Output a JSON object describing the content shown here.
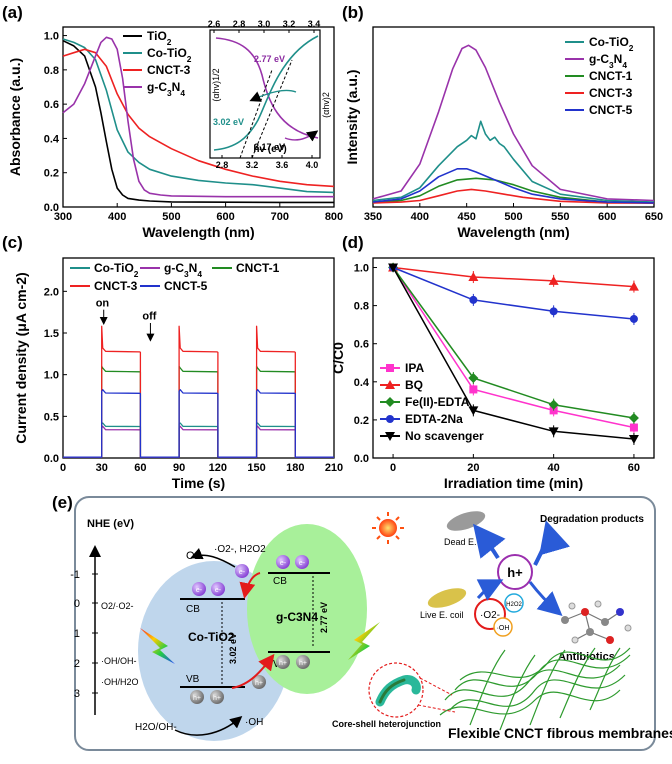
{
  "chart_data": [
    {
      "panel": "(a)",
      "type": "line",
      "xlabel": "Wavelength (nm)",
      "ylabel": "Absorbance (a.u.)",
      "xlim": [
        300,
        800
      ],
      "ylim": [
        0,
        1.05
      ],
      "xticks": [
        300,
        400,
        500,
        600,
        700,
        800
      ],
      "yticks": [
        0.0,
        0.2,
        0.4,
        0.6,
        0.8,
        1.0
      ],
      "legend": "top-left",
      "series": [
        {
          "name": "TiO2",
          "label_base": "TiO",
          "label_sub": "2",
          "color": "#000000",
          "x": [
            300,
            320,
            340,
            360,
            370,
            380,
            390,
            400,
            410,
            420,
            440,
            460,
            500,
            600,
            700,
            800
          ],
          "y": [
            0.97,
            0.94,
            0.88,
            0.7,
            0.55,
            0.38,
            0.22,
            0.11,
            0.07,
            0.05,
            0.04,
            0.035,
            0.03,
            0.028,
            0.027,
            0.027
          ]
        },
        {
          "name": "Co-TiO2",
          "label_base": "Co-TiO",
          "label_sub": "2",
          "color": "#1f8f8a",
          "x": [
            300,
            320,
            340,
            360,
            380,
            400,
            420,
            440,
            460,
            500,
            550,
            600,
            650,
            700,
            750,
            800
          ],
          "y": [
            0.98,
            0.96,
            0.93,
            0.86,
            0.68,
            0.45,
            0.32,
            0.26,
            0.22,
            0.18,
            0.155,
            0.14,
            0.13,
            0.11,
            0.09,
            0.085
          ]
        },
        {
          "name": "CNCT-3",
          "label_base": "CNCT-3",
          "label_sub": "",
          "color": "#ee2222",
          "x": [
            300,
            320,
            340,
            360,
            380,
            400,
            420,
            440,
            460,
            500,
            550,
            600,
            650,
            700,
            750,
            800
          ],
          "y": [
            0.88,
            0.9,
            0.92,
            0.9,
            0.82,
            0.66,
            0.54,
            0.46,
            0.41,
            0.34,
            0.27,
            0.22,
            0.18,
            0.15,
            0.13,
            0.12
          ]
        },
        {
          "name": "g-C3N4",
          "label_base": "g-C",
          "label_sub": "3",
          "label_mid": "N",
          "label_sub2": "4",
          "color": "#9933aa",
          "x": [
            300,
            320,
            340,
            360,
            370,
            380,
            390,
            400,
            410,
            420,
            430,
            440,
            450,
            460,
            480,
            500,
            600,
            700,
            800
          ],
          "y": [
            0.55,
            0.6,
            0.72,
            0.88,
            0.96,
            0.99,
            0.98,
            0.92,
            0.75,
            0.5,
            0.28,
            0.15,
            0.1,
            0.08,
            0.07,
            0.065,
            0.06,
            0.06,
            0.06
          ]
        }
      ],
      "inset": {
        "xlabel": "hv (eV)",
        "ylabel_left": "(αhv)1/2",
        "ylabel_right": "(αhv)2",
        "xticks_bottom": [
          2.8,
          3.2,
          3.6,
          4.0
        ],
        "xticks_top": [
          2.6,
          2.8,
          3.0,
          3.2,
          3.4
        ],
        "annotations": [
          "2.77 eV",
          "3.02 eV",
          "3.17 eV"
        ]
      }
    },
    {
      "panel": "(b)",
      "type": "line",
      "xlabel": "Wavelength (nm)",
      "ylabel": "Intensity (a.u.)",
      "xlim": [
        350,
        650
      ],
      "xticks": [
        350,
        400,
        450,
        500,
        550,
        600,
        650
      ],
      "legend": "top-right",
      "series": [
        {
          "name": "Co-TiO2",
          "label_base": "Co-TiO",
          "label_sub": "2",
          "color": "#1f8f8a",
          "x": [
            350,
            380,
            400,
            420,
            440,
            450,
            455,
            460,
            465,
            470,
            475,
            480,
            485,
            490,
            500,
            520,
            550,
            600,
            650
          ],
          "y": [
            0.02,
            0.04,
            0.1,
            0.24,
            0.36,
            0.4,
            0.43,
            0.41,
            0.52,
            0.44,
            0.4,
            0.42,
            0.38,
            0.36,
            0.28,
            0.14,
            0.06,
            0.02,
            0.01
          ]
        },
        {
          "name": "g-C3N4",
          "label_base": "g-C",
          "label_sub": "3",
          "label_mid": "N",
          "label_sub2": "4",
          "color": "#9933aa",
          "x": [
            350,
            380,
            400,
            420,
            435,
            445,
            452,
            460,
            470,
            485,
            500,
            520,
            550,
            600,
            650
          ],
          "y": [
            0.03,
            0.08,
            0.25,
            0.58,
            0.85,
            0.98,
            1.0,
            0.97,
            0.86,
            0.64,
            0.44,
            0.24,
            0.09,
            0.03,
            0.02
          ]
        },
        {
          "name": "CNCT-1",
          "label_base": "CNCT-1",
          "label_sub": "",
          "color": "#228b22",
          "x": [
            350,
            380,
            400,
            420,
            440,
            460,
            480,
            500,
            520,
            550,
            600,
            650
          ],
          "y": [
            0.01,
            0.02,
            0.05,
            0.11,
            0.15,
            0.16,
            0.15,
            0.12,
            0.08,
            0.04,
            0.01,
            0.005
          ]
        },
        {
          "name": "CNCT-3",
          "label_base": "CNCT-3",
          "label_sub": "",
          "color": "#ee2222",
          "x": [
            350,
            380,
            400,
            420,
            440,
            455,
            470,
            490,
            510,
            550,
            600,
            650
          ],
          "y": [
            0.005,
            0.01,
            0.02,
            0.05,
            0.08,
            0.09,
            0.08,
            0.06,
            0.04,
            0.015,
            0.005,
            0.003
          ]
        },
        {
          "name": "CNCT-5",
          "label_base": "CNCT-5",
          "label_sub": "",
          "color": "#2233cc",
          "x": [
            350,
            380,
            400,
            420,
            440,
            450,
            460,
            480,
            500,
            520,
            550,
            600,
            650
          ],
          "y": [
            0.01,
            0.03,
            0.08,
            0.17,
            0.22,
            0.22,
            0.2,
            0.15,
            0.1,
            0.06,
            0.03,
            0.01,
            0.005
          ]
        }
      ]
    },
    {
      "panel": "(c)",
      "type": "line",
      "xlabel": "Time (s)",
      "ylabel": "Current density (μA cm-2)",
      "xlim": [
        0,
        210
      ],
      "ylim": [
        0,
        2.4
      ],
      "xticks": [
        0,
        30,
        60,
        90,
        120,
        150,
        180,
        210
      ],
      "yticks": [
        0.0,
        0.5,
        1.0,
        1.5,
        2.0
      ],
      "legend": "top",
      "annotations": [
        "on",
        "off"
      ],
      "on_intervals": [
        [
          30,
          60
        ],
        [
          90,
          120
        ],
        [
          150,
          180
        ]
      ],
      "series": [
        {
          "name": "Co-TiO2",
          "label_base": "Co-TiO",
          "label_sub": "2",
          "color": "#1f8f8a",
          "on_level": 0.38,
          "spike": 0.41
        },
        {
          "name": "g-C3N4",
          "label_base": "g-C",
          "label_sub": "3",
          "label_mid": "N",
          "label_sub2": "4",
          "color": "#9933aa",
          "on_level": 0.34,
          "spike": 0.36
        },
        {
          "name": "CNCT-1",
          "label_base": "CNCT-1",
          "label_sub": "",
          "color": "#228b22",
          "on_level": 1.04,
          "spike": 1.1
        },
        {
          "name": "CNCT-3",
          "label_base": "CNCT-3",
          "label_sub": "",
          "color": "#ee2222",
          "on_level": 1.28,
          "spike": 1.58
        },
        {
          "name": "CNCT-5",
          "label_base": "CNCT-5",
          "label_sub": "",
          "color": "#2233cc",
          "on_level": 0.78,
          "spike": 0.8
        }
      ]
    },
    {
      "panel": "(d)",
      "type": "line",
      "xlabel": "Irradiation time (min)",
      "ylabel": "C/C0",
      "xlim": [
        -5,
        65
      ],
      "ylim": [
        0,
        1.05
      ],
      "xticks": [
        0,
        20,
        40,
        60
      ],
      "yticks": [
        0.0,
        0.2,
        0.4,
        0.6,
        0.8,
        1.0
      ],
      "legend": "bottom-left",
      "x": [
        0,
        20,
        40,
        60
      ],
      "series": [
        {
          "name": "IPA",
          "color": "#ff33cc",
          "marker": "square",
          "values": [
            1.0,
            0.36,
            0.25,
            0.16
          ]
        },
        {
          "name": "BQ",
          "color": "#ee2222",
          "marker": "triangle-up",
          "values": [
            1.0,
            0.95,
            0.93,
            0.9
          ]
        },
        {
          "name": "Fe(II)-EDTA",
          "color": "#228b22",
          "marker": "diamond",
          "values": [
            1.0,
            0.42,
            0.28,
            0.21
          ]
        },
        {
          "name": "EDTA-2Na",
          "color": "#2233cc",
          "marker": "circle",
          "values": [
            1.0,
            0.83,
            0.77,
            0.73
          ]
        },
        {
          "name": "No scavenger",
          "color": "#000000",
          "marker": "triangle-down",
          "values": [
            1.0,
            0.25,
            0.14,
            0.1
          ]
        }
      ]
    }
  ],
  "panels": {
    "a": "(a)",
    "b": "(b)",
    "c": "(c)",
    "d": "(d)",
    "e": "(e)"
  },
  "diagram": {
    "nhe_label": "NHE (eV)",
    "nhe_ticks": [
      "-1",
      "0",
      "1",
      "2",
      "3"
    ],
    "level_labels": [
      "O2/·O2-",
      "·OH/OH-",
      "·OH/H2O"
    ],
    "o2": "O2",
    "o2_products": "·O2-, H2O2",
    "h2o_oh": "H2O/OH-",
    "oh_product": "·OH",
    "co_tio2": "Co-TiO2",
    "gcn": "g-C3N4",
    "cb": "CB",
    "vb": "VB",
    "gap_co": "3.02 eV",
    "gap_gcn": "2.77 eV",
    "electron": "e-",
    "hole": "h+",
    "dead": "Dead E. coil",
    "live": "Live E. coil",
    "degradation": "Degradation products",
    "antibiotics": "Antibiotics",
    "radical_o2": "·O2-",
    "radical_h2o2": "H2O2",
    "radical_oh": "·OH",
    "core_shell": "Core-shell heterojunction",
    "membranes": "Flexible CNCT fibrous membranes"
  }
}
